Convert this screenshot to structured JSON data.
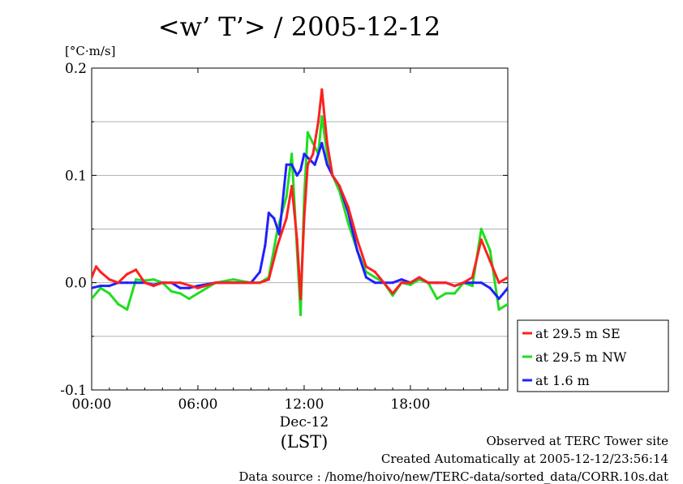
{
  "title": "<w’ T’> / 2005-12-12",
  "footer": {
    "line1": "Observed at TERC Tower site",
    "line2": "Created Automatically at 2005-12-12/23:56:14",
    "line3": "Data source : /home/hoivo/new/TERC-data/sorted_data/CORR.10s.dat"
  },
  "chart_data": {
    "type": "line",
    "title": "<w’ T’> / 2005-12-12",
    "ylabel": "[°C·m/s]",
    "xlabel": "(LST)",
    "xdate_label": "Dec-12",
    "xlim": [
      0,
      23.5
    ],
    "ylim": [
      -0.1,
      0.2
    ],
    "x_ticks": [
      {
        "value": 0,
        "label": "00:00"
      },
      {
        "value": 6,
        "label": "06:00"
      },
      {
        "value": 12,
        "label": "12:00"
      },
      {
        "value": 18,
        "label": "18:00"
      }
    ],
    "y_ticks": [
      {
        "value": -0.1,
        "label": "-0.1"
      },
      {
        "value": 0.0,
        "label": "0.0"
      },
      {
        "value": 0.1,
        "label": "0.1"
      },
      {
        "value": 0.2,
        "label": "0.2"
      }
    ],
    "grid": true,
    "legend_position": "right",
    "series": [
      {
        "name": "at 29.5 m SE",
        "color": "#ff2020",
        "x": [
          0,
          0.25,
          0.5,
          1,
          1.5,
          2,
          2.5,
          3,
          3.5,
          4,
          5,
          6,
          7,
          8,
          9,
          9.5,
          10,
          10.5,
          11,
          11.3,
          11.6,
          11.8,
          12,
          12.2,
          12.5,
          12.8,
          13,
          13.3,
          13.6,
          14,
          14.5,
          15,
          15.5,
          16,
          16.5,
          17,
          17.5,
          18,
          18.5,
          19,
          19.5,
          20,
          20.5,
          21,
          21.5,
          22,
          22.5,
          23,
          23.5
        ],
        "y": [
          0.005,
          0.015,
          0.01,
          0.003,
          0.0,
          0.008,
          0.012,
          0.0,
          -0.003,
          0.0,
          0.0,
          -0.005,
          0.0,
          0.0,
          0.0,
          0.0,
          0.003,
          0.035,
          0.06,
          0.09,
          0.04,
          -0.015,
          0.06,
          0.11,
          0.12,
          0.15,
          0.18,
          0.13,
          0.1,
          0.09,
          0.07,
          0.04,
          0.015,
          0.01,
          0.0,
          -0.01,
          0.0,
          0.0,
          0.005,
          0.0,
          0.0,
          0.0,
          -0.003,
          0.0,
          0.005,
          0.04,
          0.02,
          0.0,
          0.005
        ]
      },
      {
        "name": "at 29.5 m NW",
        "color": "#20dd20",
        "x": [
          0,
          0.5,
          1,
          1.5,
          2,
          2.5,
          3,
          3.5,
          4,
          4.5,
          5,
          5.5,
          6,
          7,
          8,
          9,
          9.5,
          10,
          10.5,
          11,
          11.3,
          11.6,
          11.8,
          12,
          12.2,
          12.5,
          12.8,
          13,
          13.3,
          13.6,
          14,
          14.5,
          15,
          15.5,
          16,
          16.5,
          17,
          17.5,
          18,
          18.5,
          19,
          19.5,
          20,
          20.5,
          21,
          21.5,
          22,
          22.5,
          23,
          23.5
        ],
        "y": [
          -0.015,
          -0.005,
          -0.01,
          -0.02,
          -0.025,
          0.003,
          0.002,
          0.003,
          0.0,
          -0.008,
          -0.01,
          -0.015,
          -0.01,
          0.0,
          0.003,
          0.0,
          0.0,
          0.005,
          0.05,
          0.08,
          0.12,
          0.03,
          -0.03,
          0.08,
          0.14,
          0.13,
          0.12,
          0.155,
          0.12,
          0.1,
          0.085,
          0.055,
          0.03,
          0.01,
          0.005,
          0.0,
          -0.012,
          0.0,
          -0.002,
          0.003,
          0.0,
          -0.015,
          -0.01,
          -0.01,
          0.0,
          -0.003,
          0.05,
          0.03,
          -0.025,
          -0.02
        ]
      },
      {
        "name": "at 1.6 m",
        "color": "#2020ff",
        "x": [
          0,
          0.5,
          1,
          1.5,
          2,
          2.5,
          3,
          3.5,
          4,
          4.5,
          5,
          5.5,
          6,
          7,
          8,
          9,
          9.5,
          9.8,
          10,
          10.3,
          10.6,
          11,
          11.3,
          11.6,
          11.8,
          12,
          12.3,
          12.6,
          13,
          13.3,
          13.6,
          14,
          14.5,
          15,
          15.5,
          16,
          16.5,
          17,
          17.5,
          18,
          18.5,
          19,
          19.5,
          20,
          20.5,
          21,
          21.5,
          22,
          22.5,
          23,
          23.5
        ],
        "y": [
          -0.005,
          -0.003,
          -0.003,
          0.0,
          0.0,
          0.0,
          0.0,
          -0.002,
          0.0,
          0.0,
          -0.005,
          -0.005,
          -0.003,
          0.0,
          0.0,
          0.0,
          0.01,
          0.035,
          0.065,
          0.06,
          0.045,
          0.11,
          0.11,
          0.1,
          0.105,
          0.12,
          0.115,
          0.11,
          0.13,
          0.11,
          0.1,
          0.09,
          0.065,
          0.03,
          0.005,
          0.0,
          0.0,
          0.0,
          0.003,
          0.0,
          0.005,
          0.0,
          0.0,
          0.0,
          -0.003,
          0.0,
          0.0,
          0.0,
          -0.005,
          -0.015,
          -0.005
        ]
      }
    ]
  }
}
